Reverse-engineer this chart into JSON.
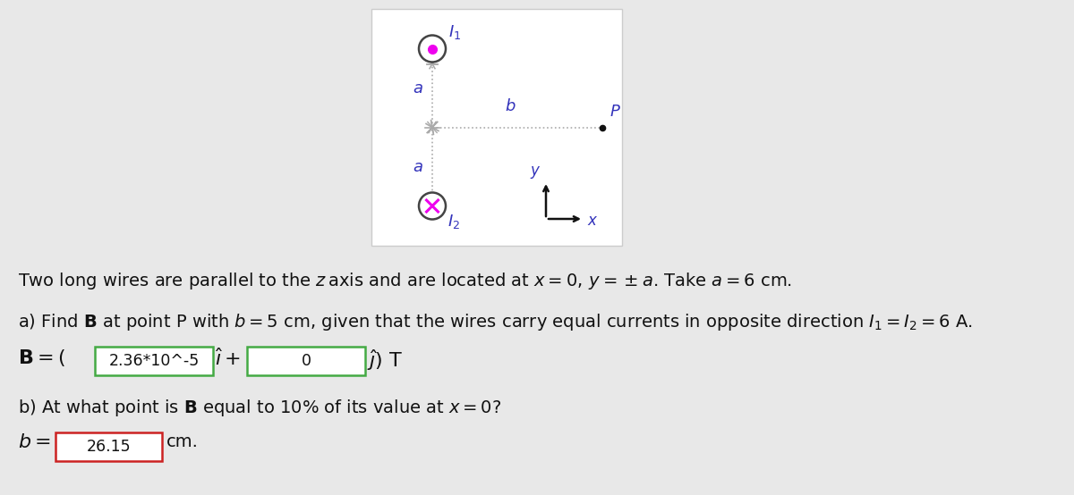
{
  "bg_color": "#e8e8e8",
  "diagram_bg": "#ffffff",
  "diagram_border": "#cccccc",
  "wire1_color": "#ee00ee",
  "wire2_color": "#ee00ee",
  "wire_circle_color": "#444444",
  "label_color": "#3333bb",
  "point_P_color": "#111111",
  "dotted_line_color": "#aaaaaa",
  "axis_color": "#111111",
  "star_color": "#aaaaaa",
  "box1_border": "#44aa44",
  "box2_border": "#44aa44",
  "box3_border": "#cc2222",
  "text_color": "#111111",
  "title_text": "Two long wires are parallel to the ",
  "title_z": "z",
  "title_rest": "axis and are located at ",
  "part_a_box1_val": "2.36*10^-5",
  "part_a_box2_val": "0",
  "part_b_box_val": "26.15"
}
